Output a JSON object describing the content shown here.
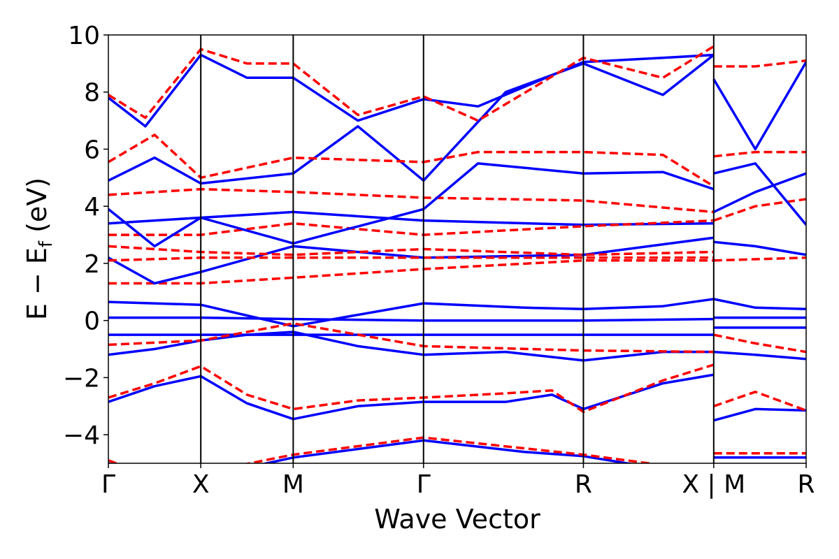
{
  "chart_data": {
    "type": "line",
    "title": "",
    "xlabel": "Wave Vector",
    "ylabel": "E − E",
    "ylabel_subscript": "f",
    "ylabel_unit": " (eV)",
    "ylim": [
      -5,
      10
    ],
    "yticks": [
      10,
      8,
      6,
      4,
      2,
      0,
      -2,
      -4
    ],
    "ytick_labels": [
      "10",
      "8",
      "6",
      "4",
      "2",
      "0",
      "−2",
      "−4"
    ],
    "xlim": [
      0,
      7.55
    ],
    "kpoints": [
      {
        "label": "Γ",
        "x": 0
      },
      {
        "label": "X",
        "x": 1.0
      },
      {
        "label": "M",
        "x": 2.0
      },
      {
        "label": "Γ",
        "x": 3.41
      },
      {
        "label": "R",
        "x": 5.14
      },
      {
        "label": "X | M",
        "x": 6.55
      },
      {
        "label": "R",
        "x": 7.55
      }
    ],
    "colors": {
      "solid": "#0000ff",
      "dashed": "#ff0000"
    },
    "series": [
      {
        "style": "solid",
        "color": "#0000ff",
        "points": [
          [
            0,
            -2.85
          ],
          [
            0.5,
            -2.3
          ],
          [
            1.0,
            -1.95
          ],
          [
            1.5,
            -2.9
          ],
          [
            2.0,
            -3.45
          ],
          [
            2.7,
            -3.0
          ],
          [
            3.41,
            -2.85
          ],
          [
            4.3,
            -2.85
          ],
          [
            4.8,
            -2.6
          ],
          [
            5.14,
            -3.1
          ],
          [
            6.0,
            -2.2
          ],
          [
            6.55,
            -1.9
          ]
        ]
      },
      {
        "style": "dashed",
        "color": "#ff0000",
        "points": [
          [
            0,
            -2.7
          ],
          [
            0.5,
            -2.2
          ],
          [
            1.0,
            -1.6
          ],
          [
            1.5,
            -2.6
          ],
          [
            2.0,
            -3.1
          ],
          [
            2.7,
            -2.8
          ],
          [
            3.41,
            -2.7
          ],
          [
            4.3,
            -2.55
          ],
          [
            4.8,
            -2.45
          ],
          [
            5.14,
            -3.2
          ],
          [
            6.0,
            -2.1
          ],
          [
            6.55,
            -1.55
          ]
        ]
      },
      {
        "style": "solid",
        "color": "#0000ff",
        "points": [
          [
            0,
            -1.2
          ],
          [
            0.5,
            -1.0
          ],
          [
            1.0,
            -0.7
          ],
          [
            1.5,
            -0.5
          ],
          [
            2.0,
            -0.4
          ],
          [
            2.7,
            -0.9
          ],
          [
            3.41,
            -1.2
          ],
          [
            4.3,
            -1.1
          ],
          [
            5.14,
            -1.4
          ],
          [
            6.0,
            -1.1
          ],
          [
            6.55,
            -1.1
          ]
        ]
      },
      {
        "style": "solid",
        "color": "#0000ff",
        "points": [
          [
            0,
            -0.5
          ],
          [
            1.0,
            -0.5
          ],
          [
            2.0,
            -0.5
          ],
          [
            3.41,
            -0.5
          ],
          [
            5.14,
            -0.5
          ],
          [
            6.55,
            -0.5
          ]
        ]
      },
      {
        "style": "solid",
        "color": "#0000ff",
        "points": [
          [
            0,
            0.1
          ],
          [
            1.0,
            0.1
          ],
          [
            2.0,
            0.05
          ],
          [
            3.41,
            0.0
          ],
          [
            5.14,
            0.0
          ],
          [
            6.55,
            0.05
          ]
        ]
      },
      {
        "style": "solid",
        "color": "#0000ff",
        "points": [
          [
            0,
            0.65
          ],
          [
            1.0,
            0.55
          ],
          [
            2.0,
            -0.2
          ],
          [
            3.41,
            0.6
          ],
          [
            4.5,
            0.45
          ],
          [
            5.14,
            0.4
          ],
          [
            6.0,
            0.5
          ],
          [
            6.55,
            0.75
          ]
        ]
      },
      {
        "style": "dashed",
        "color": "#ff0000",
        "points": [
          [
            0,
            -0.85
          ],
          [
            1.0,
            -0.7
          ],
          [
            2.0,
            -0.1
          ],
          [
            3.41,
            -0.9
          ],
          [
            5.14,
            -1.05
          ],
          [
            6.55,
            -1.1
          ]
        ]
      },
      {
        "style": "dashed",
        "color": "#ff0000",
        "points": [
          [
            0,
            1.3
          ],
          [
            1.0,
            1.3
          ],
          [
            2.0,
            1.5
          ],
          [
            3.41,
            1.8
          ],
          [
            5.14,
            2.1
          ],
          [
            6.55,
            2.1
          ]
        ]
      },
      {
        "style": "solid",
        "color": "#0000ff",
        "points": [
          [
            0,
            2.2
          ],
          [
            0.5,
            1.3
          ],
          [
            1.0,
            1.7
          ],
          [
            2.0,
            2.6
          ],
          [
            3.41,
            2.2
          ],
          [
            5.14,
            2.3
          ],
          [
            6.55,
            2.9
          ]
        ]
      },
      {
        "style": "dashed",
        "color": "#ff0000",
        "points": [
          [
            0,
            2.1
          ],
          [
            1.0,
            2.2
          ],
          [
            2.0,
            2.2
          ],
          [
            3.41,
            2.2
          ],
          [
            5.14,
            2.2
          ],
          [
            6.55,
            2.2
          ]
        ]
      },
      {
        "style": "dashed",
        "color": "#ff0000",
        "points": [
          [
            0,
            2.6
          ],
          [
            1.0,
            2.4
          ],
          [
            2.0,
            2.3
          ],
          [
            3.41,
            2.5
          ],
          [
            5.14,
            2.3
          ],
          [
            6.55,
            2.4
          ]
        ]
      },
      {
        "style": "solid",
        "color": "#0000ff",
        "points": [
          [
            0,
            3.4
          ],
          [
            1.0,
            3.6
          ],
          [
            2.0,
            3.8
          ],
          [
            3.41,
            3.5
          ],
          [
            5.14,
            3.35
          ],
          [
            6.55,
            3.4
          ]
        ]
      },
      {
        "style": "dashed",
        "color": "#ff0000",
        "points": [
          [
            0,
            3.0
          ],
          [
            1.0,
            3.0
          ],
          [
            2.0,
            3.4
          ],
          [
            3.41,
            3.0
          ],
          [
            5.14,
            3.3
          ],
          [
            6.55,
            3.5
          ]
        ]
      },
      {
        "style": "dashed",
        "color": "#ff0000",
        "points": [
          [
            0,
            4.4
          ],
          [
            1.0,
            4.6
          ],
          [
            2.0,
            4.5
          ],
          [
            3.41,
            4.3
          ],
          [
            5.14,
            4.2
          ],
          [
            6.55,
            3.8
          ]
        ]
      },
      {
        "style": "solid",
        "color": "#0000ff",
        "points": [
          [
            0,
            3.9
          ],
          [
            0.5,
            2.6
          ],
          [
            1.0,
            3.6
          ],
          [
            2.0,
            2.7
          ],
          [
            3.41,
            3.9
          ],
          [
            4.0,
            5.5
          ],
          [
            5.14,
            5.15
          ],
          [
            6.0,
            5.2
          ],
          [
            6.55,
            4.6
          ]
        ]
      },
      {
        "style": "solid",
        "color": "#0000ff",
        "points": [
          [
            0,
            4.9
          ],
          [
            0.5,
            5.7
          ],
          [
            1.0,
            4.8
          ],
          [
            2.0,
            5.15
          ],
          [
            2.7,
            6.8
          ],
          [
            3.41,
            4.9
          ],
          [
            4.3,
            8.0
          ],
          [
            5.14,
            9.0
          ],
          [
            6.0,
            7.9
          ],
          [
            6.55,
            9.3
          ]
        ]
      },
      {
        "style": "dashed",
        "color": "#ff0000",
        "points": [
          [
            0,
            5.55
          ],
          [
            0.5,
            6.5
          ],
          [
            1.0,
            5.0
          ],
          [
            2.0,
            5.7
          ],
          [
            3.41,
            5.55
          ],
          [
            4.0,
            5.9
          ],
          [
            5.14,
            5.9
          ],
          [
            6.0,
            5.8
          ],
          [
            6.55,
            4.7
          ]
        ]
      },
      {
        "style": "solid",
        "color": "#0000ff",
        "points": [
          [
            0,
            7.8
          ],
          [
            0.4,
            6.8
          ],
          [
            1.0,
            9.3
          ],
          [
            1.5,
            8.5
          ],
          [
            2.0,
            8.5
          ],
          [
            2.7,
            7.0
          ],
          [
            3.41,
            7.75
          ],
          [
            4.0,
            7.5
          ],
          [
            5.14,
            9.05
          ],
          [
            6.0,
            9.2
          ],
          [
            6.55,
            9.3
          ]
        ]
      },
      {
        "style": "dashed",
        "color": "#ff0000",
        "points": [
          [
            0,
            7.9
          ],
          [
            0.4,
            7.1
          ],
          [
            1.0,
            9.5
          ],
          [
            1.5,
            9.0
          ],
          [
            2.0,
            9.0
          ],
          [
            2.7,
            7.2
          ],
          [
            3.41,
            7.85
          ],
          [
            4.0,
            7.0
          ],
          [
            5.14,
            9.2
          ],
          [
            6.0,
            8.5
          ],
          [
            6.55,
            9.6
          ]
        ]
      },
      {
        "style": "solid",
        "color": "#0000ff",
        "points": [
          [
            0,
            -5.0
          ],
          [
            0.6,
            -5.8
          ],
          [
            1.0,
            -5.5
          ],
          [
            2.0,
            -4.8
          ],
          [
            3.41,
            -4.2
          ],
          [
            4.5,
            -4.6
          ],
          [
            5.14,
            -4.75
          ],
          [
            6.55,
            -5.5
          ]
        ]
      },
      {
        "style": "dashed",
        "color": "#ff0000",
        "points": [
          [
            0,
            -4.9
          ],
          [
            0.6,
            -5.6
          ],
          [
            2.0,
            -4.7
          ],
          [
            3.41,
            -4.1
          ],
          [
            5.14,
            -4.7
          ],
          [
            6.55,
            -5.3
          ]
        ]
      },
      {
        "style": "solid",
        "color": "#0000ff",
        "points": [
          [
            6.55,
            -3.5
          ],
          [
            7.0,
            -3.1
          ],
          [
            7.55,
            -3.15
          ]
        ]
      },
      {
        "style": "dashed",
        "color": "#ff0000",
        "points": [
          [
            6.55,
            -3.0
          ],
          [
            7.0,
            -2.5
          ],
          [
            7.55,
            -3.15
          ]
        ]
      },
      {
        "style": "solid",
        "color": "#0000ff",
        "points": [
          [
            6.55,
            -1.1
          ],
          [
            7.0,
            -1.2
          ],
          [
            7.55,
            -1.35
          ]
        ]
      },
      {
        "style": "dashed",
        "color": "#ff0000",
        "points": [
          [
            6.55,
            -0.5
          ],
          [
            7.0,
            -0.8
          ],
          [
            7.55,
            -1.1
          ]
        ]
      },
      {
        "style": "solid",
        "color": "#0000ff",
        "points": [
          [
            6.55,
            -0.25
          ],
          [
            7.55,
            -0.25
          ]
        ]
      },
      {
        "style": "solid",
        "color": "#0000ff",
        "points": [
          [
            6.55,
            0.1
          ],
          [
            7.55,
            0.1
          ]
        ]
      },
      {
        "style": "solid",
        "color": "#0000ff",
        "points": [
          [
            6.55,
            0.75
          ],
          [
            7.0,
            0.45
          ],
          [
            7.55,
            0.4
          ]
        ]
      },
      {
        "style": "dashed",
        "color": "#ff0000",
        "points": [
          [
            6.55,
            2.1
          ],
          [
            7.55,
            2.2
          ]
        ]
      },
      {
        "style": "solid",
        "color": "#0000ff",
        "points": [
          [
            6.55,
            2.75
          ],
          [
            7.0,
            2.6
          ],
          [
            7.55,
            2.3
          ]
        ]
      },
      {
        "style": "solid",
        "color": "#0000ff",
        "points": [
          [
            6.55,
            3.8
          ],
          [
            7.0,
            4.5
          ],
          [
            7.55,
            5.15
          ]
        ]
      },
      {
        "style": "dashed",
        "color": "#ff0000",
        "points": [
          [
            6.55,
            3.5
          ],
          [
            7.0,
            4.0
          ],
          [
            7.55,
            4.25
          ]
        ]
      },
      {
        "style": "solid",
        "color": "#0000ff",
        "points": [
          [
            6.55,
            5.15
          ],
          [
            7.0,
            5.5
          ],
          [
            7.55,
            3.35
          ]
        ]
      },
      {
        "style": "dashed",
        "color": "#ff0000",
        "points": [
          [
            6.55,
            5.75
          ],
          [
            7.0,
            5.9
          ],
          [
            7.55,
            5.9
          ]
        ]
      },
      {
        "style": "solid",
        "color": "#0000ff",
        "points": [
          [
            6.55,
            8.45
          ],
          [
            7.0,
            6.0
          ],
          [
            7.55,
            9.05
          ]
        ]
      },
      {
        "style": "dashed",
        "color": "#ff0000",
        "points": [
          [
            6.55,
            8.9
          ],
          [
            7.0,
            8.9
          ],
          [
            7.55,
            9.1
          ]
        ]
      },
      {
        "style": "solid",
        "color": "#0000ff",
        "points": [
          [
            6.55,
            -4.8
          ],
          [
            7.55,
            -4.8
          ]
        ]
      },
      {
        "style": "dashed",
        "color": "#ff0000",
        "points": [
          [
            6.55,
            -4.65
          ],
          [
            7.55,
            -4.65
          ]
        ]
      }
    ]
  }
}
